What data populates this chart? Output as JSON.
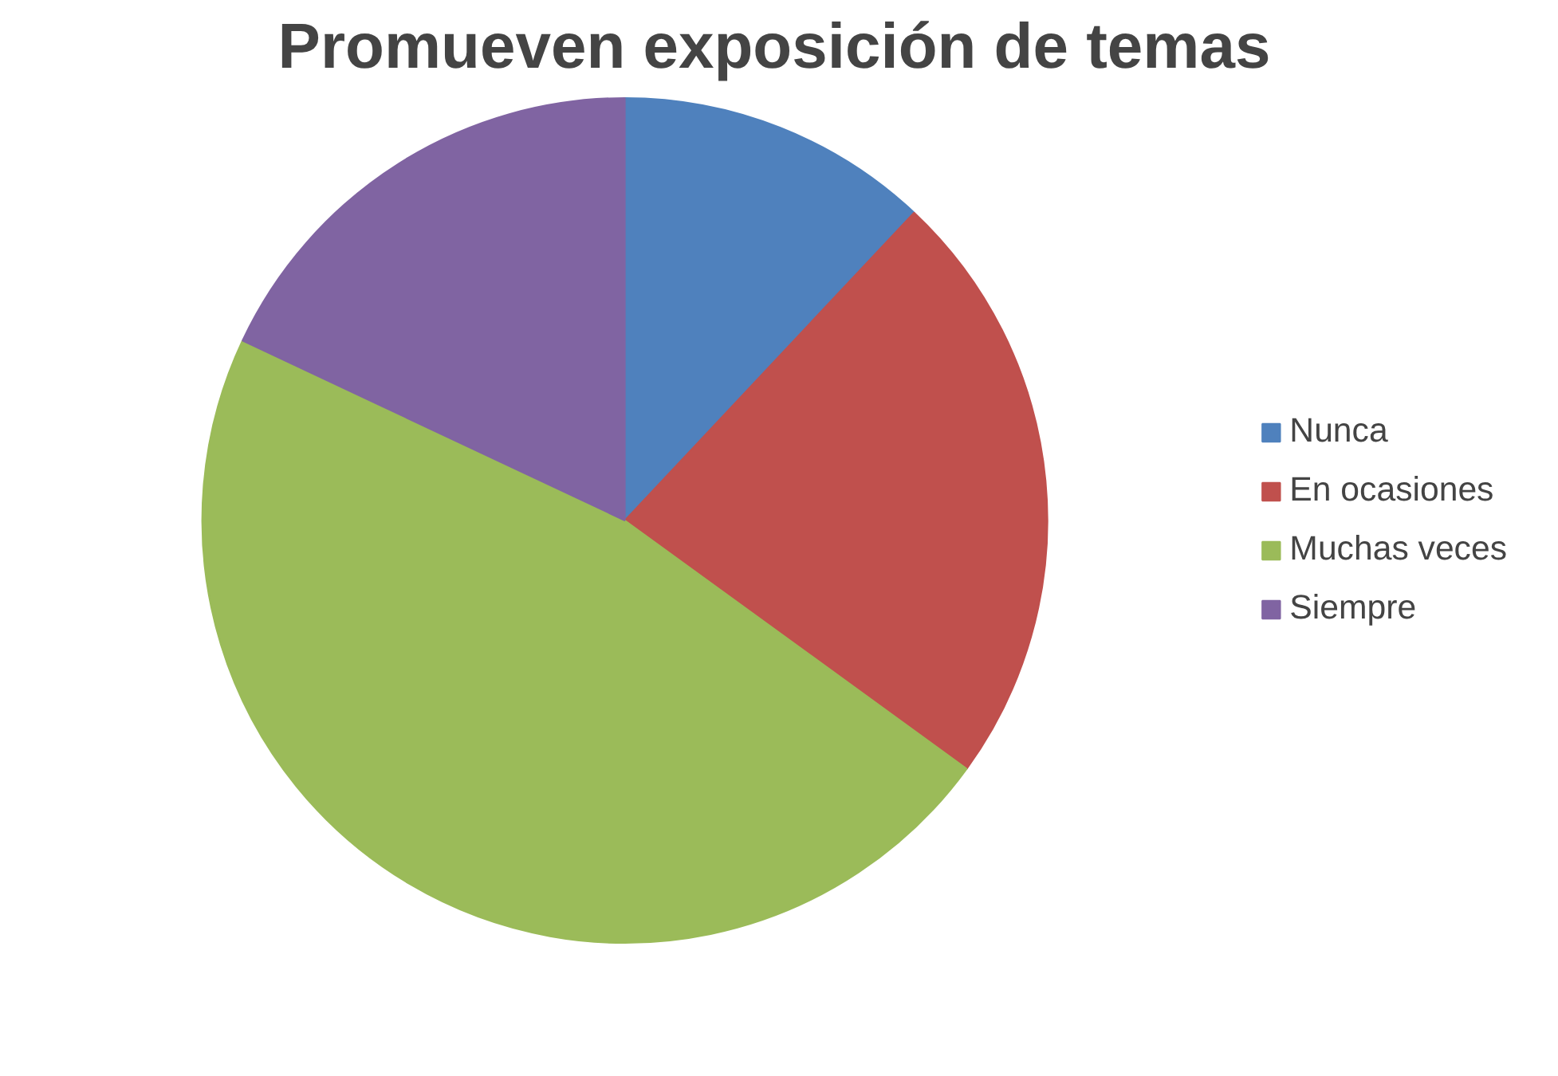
{
  "chart_data": {
    "type": "pie",
    "title": "Promueven exposición de temas",
    "categories": [
      "Nunca",
      "En ocasiones",
      "Muchas veces",
      "Siempre"
    ],
    "values": [
      12,
      23,
      47,
      18
    ],
    "colors": [
      "#4f81bd",
      "#c0504d",
      "#9bbb59",
      "#8064a2"
    ],
    "legend": "right"
  }
}
